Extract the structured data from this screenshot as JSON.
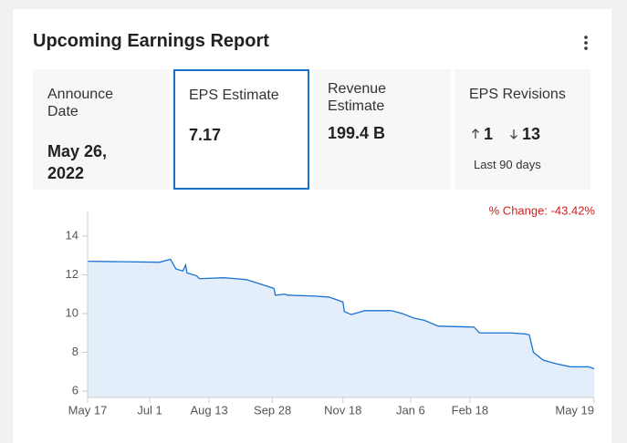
{
  "header": {
    "title": "Upcoming Earnings Report"
  },
  "tiles": [
    {
      "label": "Announce Date",
      "value": "May 26, 2022"
    },
    {
      "label": "EPS Estimate",
      "value": "7.17"
    },
    {
      "label": "Revenue Estimate",
      "value": "199.4 B"
    },
    {
      "label": "EPS Revisions",
      "up": "1",
      "down": "13",
      "note": "Last 90 days"
    }
  ],
  "chart_data": {
    "type": "area",
    "annotation": "% Change: -43.42%",
    "x": [
      0,
      52,
      60,
      64,
      69,
      71,
      72,
      79,
      81,
      99,
      115,
      122,
      135,
      136,
      143,
      145,
      165,
      175,
      185,
      186,
      191,
      201,
      220,
      228,
      237,
      244,
      254,
      280,
      284,
      307,
      317,
      320,
      323,
      330,
      340,
      350,
      363,
      367
    ],
    "values": [
      12.7,
      12.65,
      12.8,
      12.3,
      12.2,
      12.5,
      12.1,
      11.95,
      11.8,
      11.85,
      11.75,
      11.6,
      11.3,
      10.95,
      11.0,
      10.95,
      10.9,
      10.85,
      10.6,
      10.1,
      9.95,
      10.15,
      10.15,
      10.0,
      9.75,
      9.65,
      9.35,
      9.3,
      9.0,
      9.0,
      8.95,
      8.9,
      8.0,
      7.6,
      7.4,
      7.25,
      7.25,
      7.15
    ],
    "color": "#1a73d0",
    "fill": "#e3eefa",
    "xlim": [
      0,
      367
    ],
    "xticks": [
      {
        "value": 0,
        "label": "May 17"
      },
      {
        "value": 45,
        "label": "Jul 1"
      },
      {
        "value": 88,
        "label": "Aug 13"
      },
      {
        "value": 134,
        "label": "Sep 28"
      },
      {
        "value": 185,
        "label": "Nov 18"
      },
      {
        "value": 234,
        "label": "Jan 6"
      },
      {
        "value": 277,
        "label": "Feb 18"
      },
      {
        "value": 367,
        "label": "May 19"
      }
    ],
    "ylim": [
      5.67,
      15.27
    ],
    "yticks": [
      6,
      8,
      10,
      12,
      14
    ]
  }
}
